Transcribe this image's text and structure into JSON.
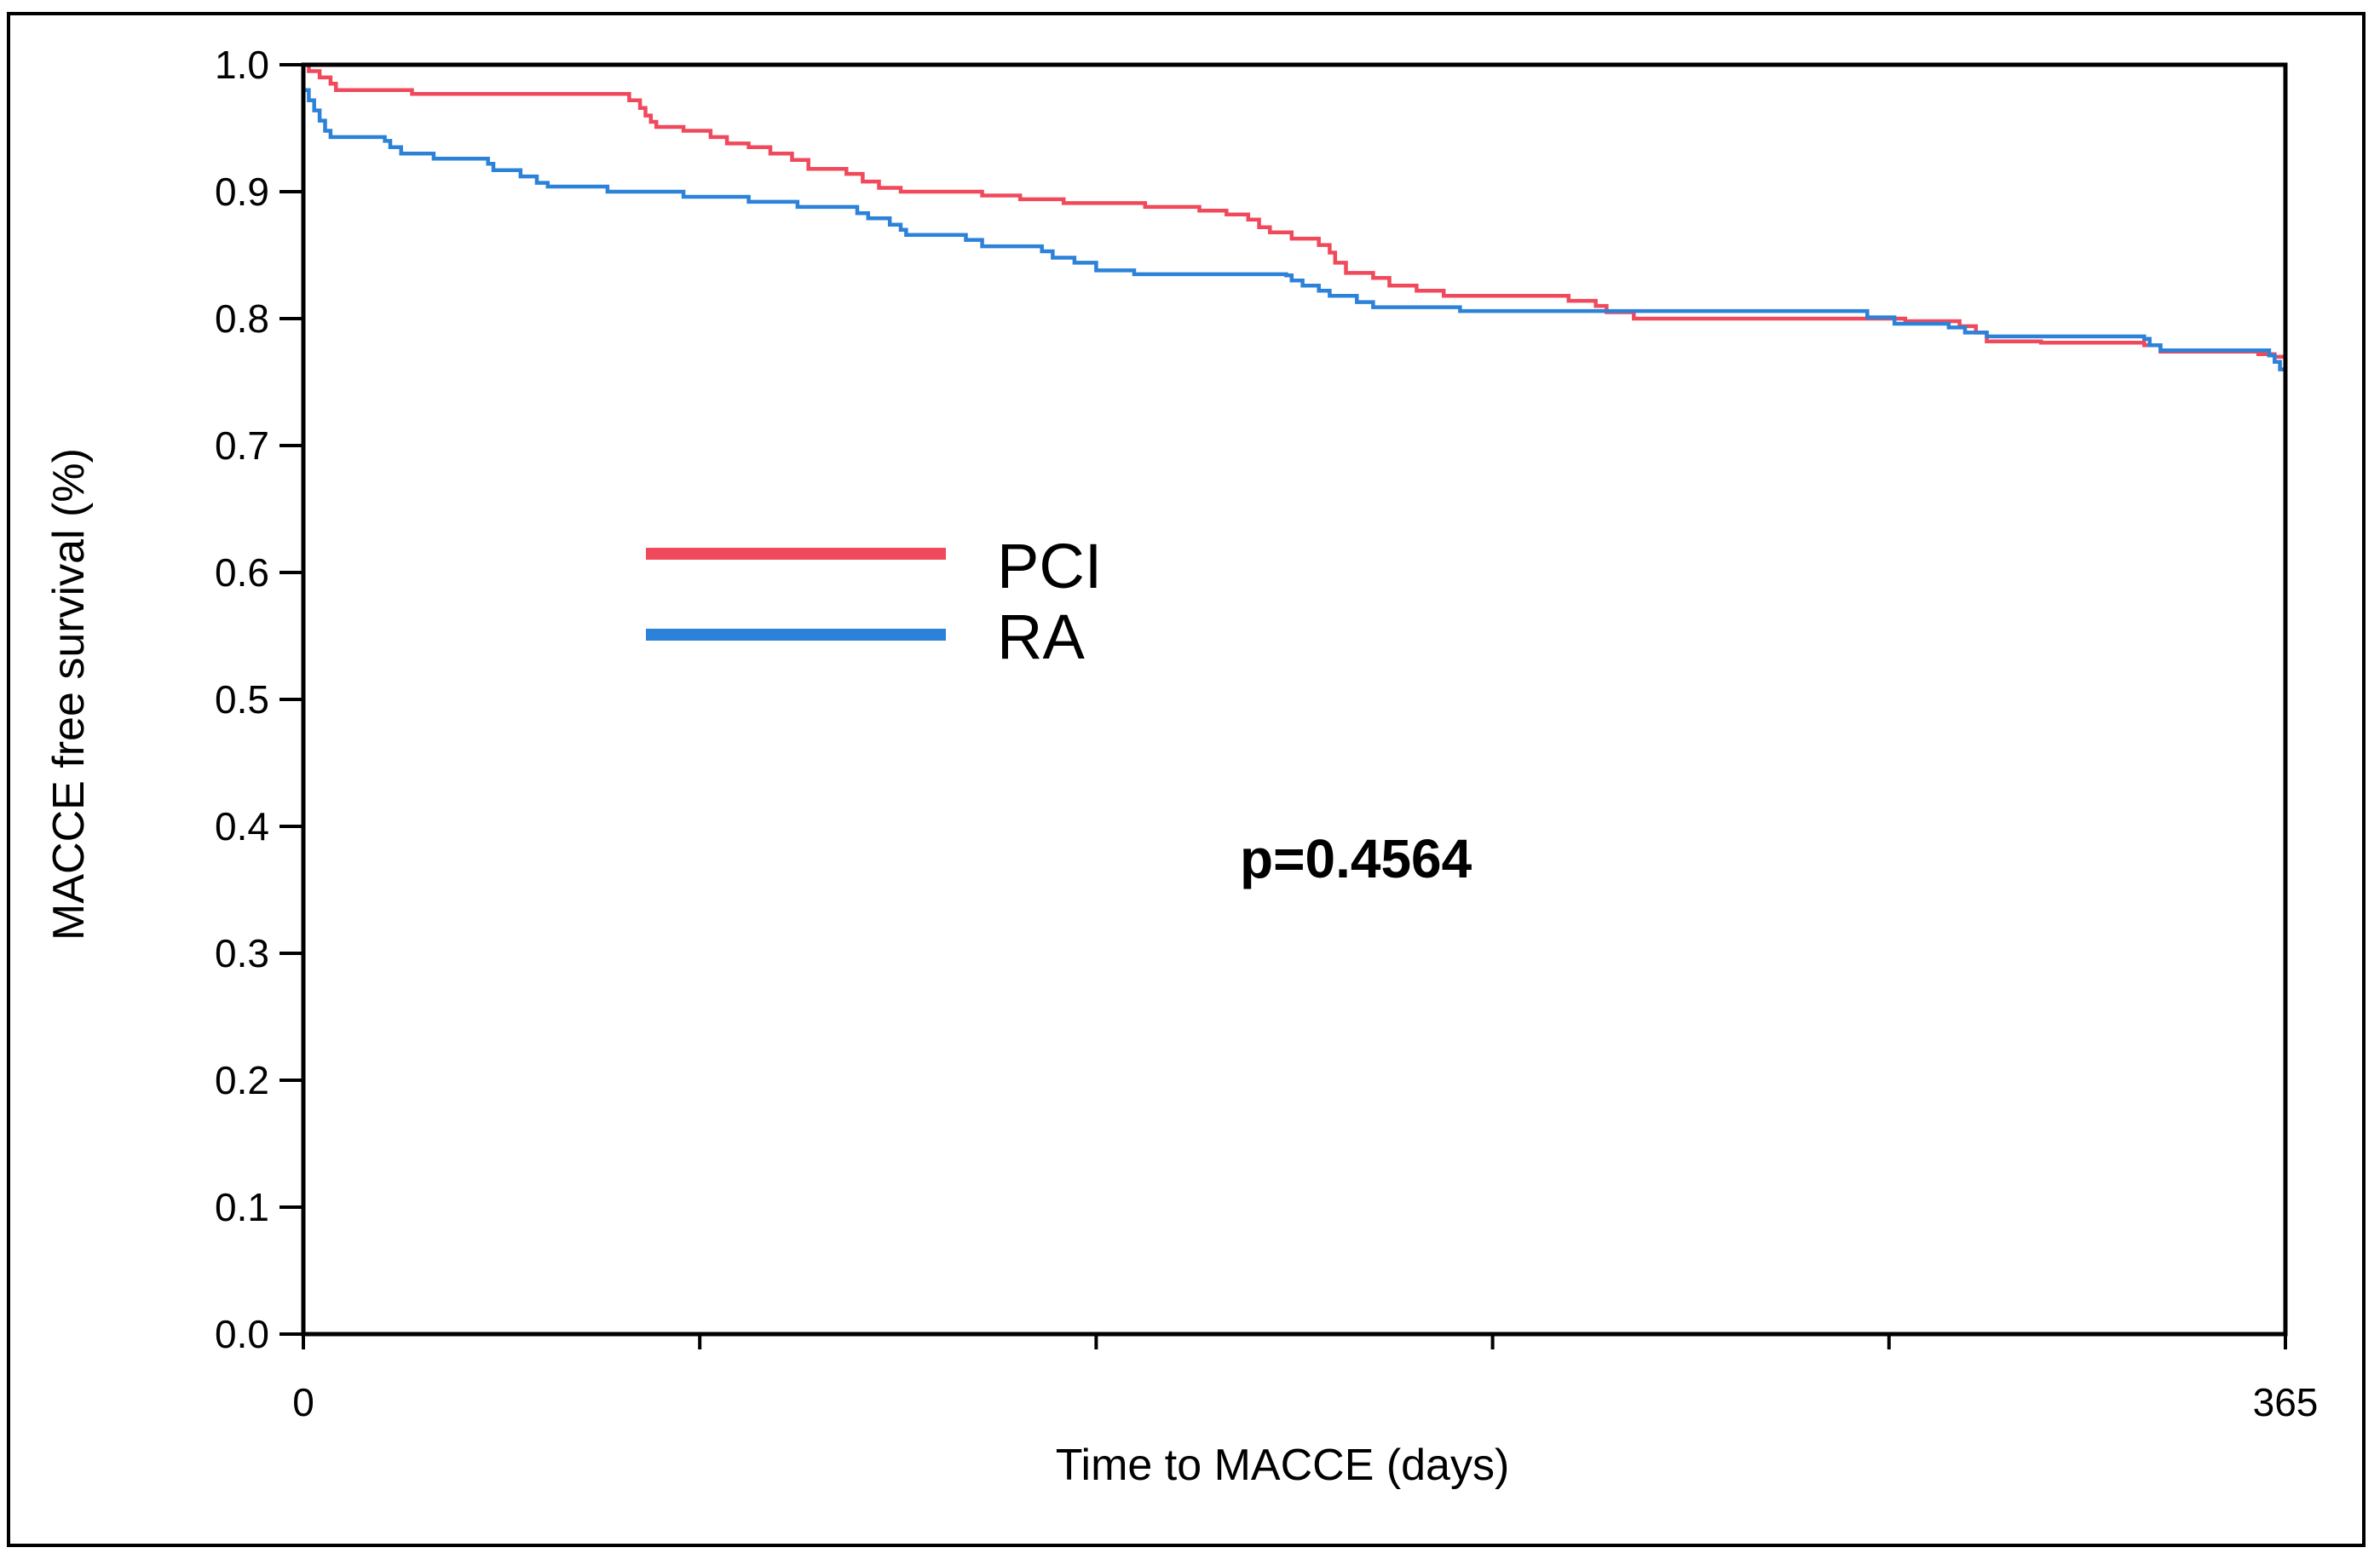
{
  "chart_data": {
    "type": "line",
    "subtype": "kaplan-meier",
    "title": "",
    "xlabel": "Time to MACCE (days)",
    "ylabel": "MACCE free survival (%)",
    "xlim": [
      0,
      365
    ],
    "ylim": [
      0.0,
      1.0
    ],
    "x_tick_labels": [
      {
        "value": 0,
        "label": "0"
      },
      {
        "value": 73,
        "label": ""
      },
      {
        "value": 146,
        "label": ""
      },
      {
        "value": 219,
        "label": ""
      },
      {
        "value": 292,
        "label": ""
      },
      {
        "value": 365,
        "label": "365"
      }
    ],
    "y_tick_labels": [
      "0.0",
      "0.1",
      "0.2",
      "0.3",
      "0.4",
      "0.5",
      "0.6",
      "0.7",
      "0.8",
      "0.9",
      "1.0"
    ],
    "y_ticks": [
      0.0,
      0.1,
      0.2,
      0.3,
      0.4,
      0.5,
      0.6,
      0.7,
      0.8,
      0.9,
      1.0
    ],
    "grid": false,
    "legend_position": "upper-left",
    "annotation": "p=0.4564",
    "series": [
      {
        "name": "PCI",
        "color": "#f0495c",
        "points": [
          [
            0,
            1.0
          ],
          [
            1,
            0.995
          ],
          [
            3,
            0.99
          ],
          [
            5,
            0.985
          ],
          [
            6,
            0.98
          ],
          [
            20,
            0.977
          ],
          [
            58,
            0.977
          ],
          [
            60,
            0.972
          ],
          [
            62,
            0.966
          ],
          [
            63,
            0.96
          ],
          [
            64,
            0.955
          ],
          [
            65,
            0.951
          ],
          [
            70,
            0.948
          ],
          [
            75,
            0.943
          ],
          [
            78,
            0.938
          ],
          [
            82,
            0.935
          ],
          [
            86,
            0.93
          ],
          [
            90,
            0.925
          ],
          [
            93,
            0.918
          ],
          [
            100,
            0.914
          ],
          [
            103,
            0.908
          ],
          [
            106,
            0.903
          ],
          [
            110,
            0.9
          ],
          [
            125,
            0.897
          ],
          [
            132,
            0.894
          ],
          [
            140,
            0.891
          ],
          [
            155,
            0.888
          ],
          [
            165,
            0.885
          ],
          [
            170,
            0.882
          ],
          [
            174,
            0.878
          ],
          [
            176,
            0.872
          ],
          [
            178,
            0.868
          ],
          [
            182,
            0.863
          ],
          [
            187,
            0.858
          ],
          [
            189,
            0.852
          ],
          [
            190,
            0.844
          ],
          [
            192,
            0.836
          ],
          [
            197,
            0.832
          ],
          [
            200,
            0.826
          ],
          [
            205,
            0.822
          ],
          [
            210,
            0.818
          ],
          [
            233,
            0.814
          ],
          [
            238,
            0.81
          ],
          [
            240,
            0.805
          ],
          [
            245,
            0.8
          ],
          [
            295,
            0.798
          ],
          [
            305,
            0.794
          ],
          [
            308,
            0.789
          ],
          [
            310,
            0.782
          ],
          [
            320,
            0.781
          ],
          [
            339,
            0.779
          ],
          [
            342,
            0.774
          ],
          [
            360,
            0.772
          ],
          [
            363,
            0.77
          ],
          [
            365,
            0.769
          ]
        ]
      },
      {
        "name": "RA",
        "color": "#2c82d8",
        "points": [
          [
            0,
            0.98
          ],
          [
            1,
            0.972
          ],
          [
            2,
            0.964
          ],
          [
            3,
            0.956
          ],
          [
            4,
            0.948
          ],
          [
            5,
            0.943
          ],
          [
            15,
            0.94
          ],
          [
            16,
            0.935
          ],
          [
            18,
            0.93
          ],
          [
            24,
            0.926
          ],
          [
            34,
            0.922
          ],
          [
            35,
            0.917
          ],
          [
            40,
            0.912
          ],
          [
            43,
            0.907
          ],
          [
            45,
            0.904
          ],
          [
            56,
            0.9
          ],
          [
            70,
            0.896
          ],
          [
            82,
            0.892
          ],
          [
            91,
            0.888
          ],
          [
            102,
            0.883
          ],
          [
            104,
            0.879
          ],
          [
            108,
            0.874
          ],
          [
            110,
            0.87
          ],
          [
            111,
            0.866
          ],
          [
            122,
            0.862
          ],
          [
            125,
            0.857
          ],
          [
            136,
            0.853
          ],
          [
            138,
            0.848
          ],
          [
            142,
            0.844
          ],
          [
            146,
            0.838
          ],
          [
            153,
            0.835
          ],
          [
            160,
            0.835
          ],
          [
            181,
            0.834
          ],
          [
            182,
            0.83
          ],
          [
            184,
            0.826
          ],
          [
            187,
            0.822
          ],
          [
            189,
            0.818
          ],
          [
            194,
            0.813
          ],
          [
            197,
            0.809
          ],
          [
            213,
            0.806
          ],
          [
            238,
            0.806
          ],
          [
            287,
            0.806
          ],
          [
            288,
            0.801
          ],
          [
            293,
            0.796
          ],
          [
            303,
            0.793
          ],
          [
            306,
            0.789
          ],
          [
            310,
            0.786
          ],
          [
            339,
            0.784
          ],
          [
            340,
            0.779
          ],
          [
            342,
            0.775
          ],
          [
            362,
            0.771
          ],
          [
            363,
            0.766
          ],
          [
            364,
            0.76
          ],
          [
            365,
            0.756
          ]
        ]
      }
    ]
  }
}
